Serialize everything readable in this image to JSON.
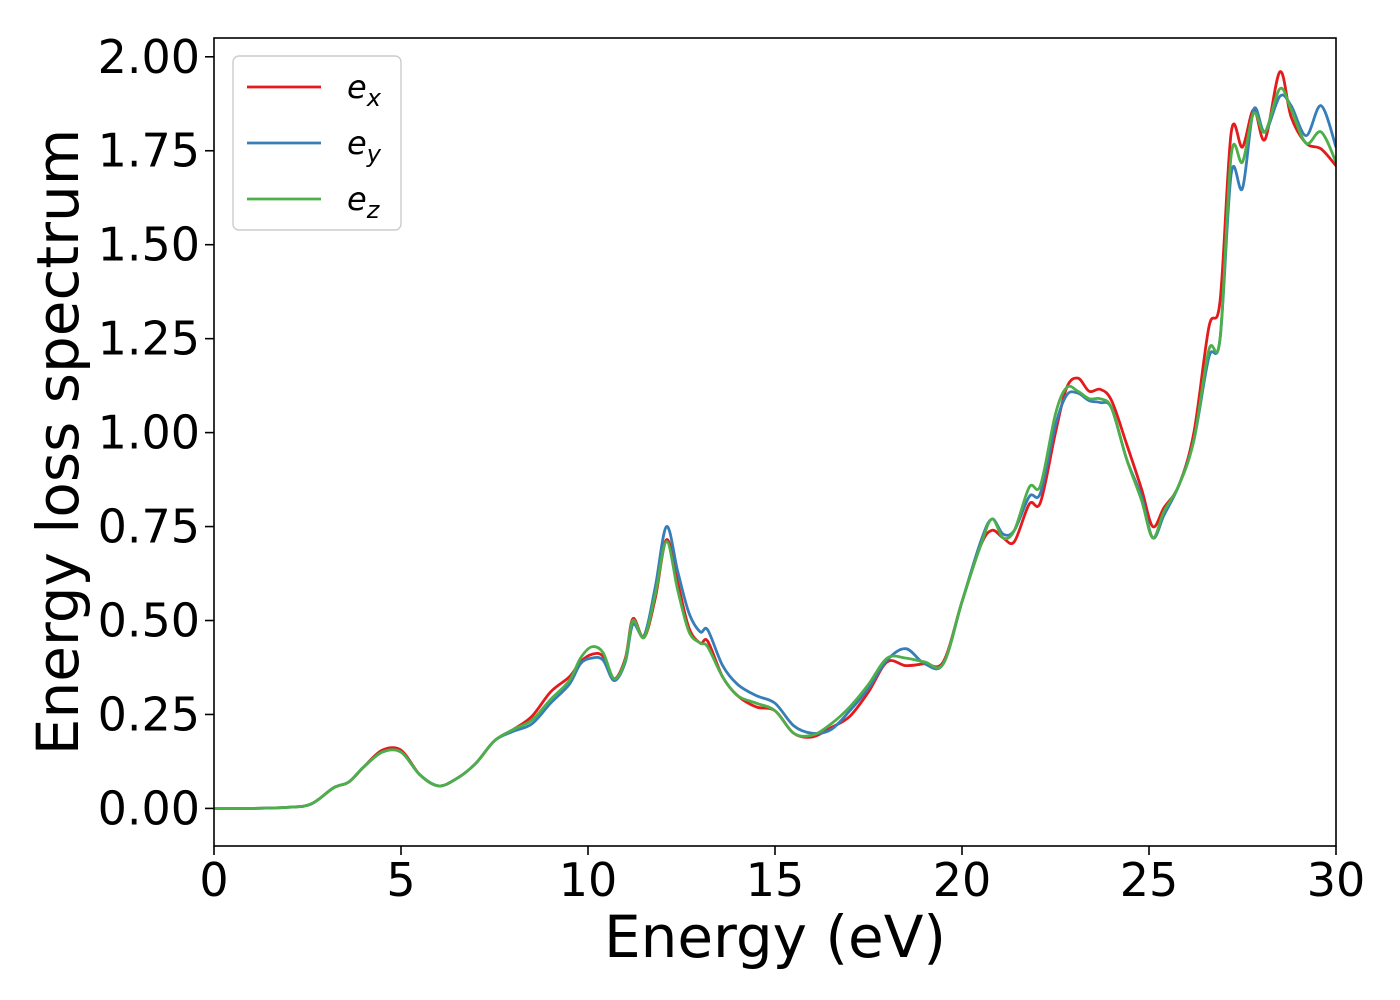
{
  "chart_data": {
    "type": "line",
    "title": "",
    "xlabel": "Energy (eV)",
    "ylabel": "Energy loss spectrum",
    "xlim": [
      0,
      30
    ],
    "ylim": [
      -0.1,
      2.05
    ],
    "xticks": [
      0,
      5,
      10,
      15,
      20,
      25,
      30
    ],
    "yticks": [
      0.0,
      0.25,
      0.5,
      0.75,
      1.0,
      1.25,
      1.5,
      1.75,
      2.0
    ],
    "xtick_labels": [
      "0",
      "5",
      "10",
      "15",
      "20",
      "25",
      "30"
    ],
    "ytick_labels": [
      "0.00",
      "0.25",
      "0.50",
      "0.75",
      "1.00",
      "1.25",
      "1.50",
      "1.75",
      "2.00"
    ],
    "grid": false,
    "legend_position": "top-left",
    "series": [
      {
        "base": "e",
        "subscript": "x",
        "color": "#e41a1c",
        "points": [
          [
            0,
            0
          ],
          [
            1,
            0
          ],
          [
            2,
            0.003
          ],
          [
            2.6,
            0.012
          ],
          [
            3.2,
            0.055
          ],
          [
            3.6,
            0.07
          ],
          [
            4,
            0.11
          ],
          [
            4.5,
            0.155
          ],
          [
            5,
            0.155
          ],
          [
            5.5,
            0.09
          ],
          [
            6,
            0.06
          ],
          [
            6.5,
            0.08
          ],
          [
            7,
            0.12
          ],
          [
            7.5,
            0.18
          ],
          [
            8,
            0.21
          ],
          [
            8.5,
            0.245
          ],
          [
            9,
            0.31
          ],
          [
            9.5,
            0.35
          ],
          [
            9.8,
            0.39
          ],
          [
            10.1,
            0.41
          ],
          [
            10.4,
            0.405
          ],
          [
            10.7,
            0.345
          ],
          [
            11,
            0.4
          ],
          [
            11.2,
            0.505
          ],
          [
            11.5,
            0.455
          ],
          [
            11.8,
            0.56
          ],
          [
            12.1,
            0.715
          ],
          [
            12.4,
            0.6
          ],
          [
            12.7,
            0.48
          ],
          [
            13,
            0.44
          ],
          [
            13.2,
            0.445
          ],
          [
            13.6,
            0.35
          ],
          [
            14,
            0.3
          ],
          [
            14.5,
            0.27
          ],
          [
            15,
            0.26
          ],
          [
            15.5,
            0.2
          ],
          [
            16,
            0.19
          ],
          [
            16.5,
            0.215
          ],
          [
            17,
            0.245
          ],
          [
            17.5,
            0.31
          ],
          [
            18,
            0.39
          ],
          [
            18.5,
            0.38
          ],
          [
            19,
            0.385
          ],
          [
            19.5,
            0.39
          ],
          [
            20,
            0.55
          ],
          [
            20.5,
            0.7
          ],
          [
            20.8,
            0.74
          ],
          [
            21.1,
            0.72
          ],
          [
            21.4,
            0.71
          ],
          [
            21.8,
            0.81
          ],
          [
            22.1,
            0.815
          ],
          [
            22.5,
            1.0
          ],
          [
            22.8,
            1.12
          ],
          [
            23.1,
            1.145
          ],
          [
            23.4,
            1.11
          ],
          [
            23.7,
            1.115
          ],
          [
            24,
            1.085
          ],
          [
            24.4,
            0.97
          ],
          [
            24.8,
            0.85
          ],
          [
            25.1,
            0.75
          ],
          [
            25.4,
            0.8
          ],
          [
            25.8,
            0.86
          ],
          [
            26.2,
            1.0
          ],
          [
            26.6,
            1.28
          ],
          [
            26.9,
            1.35
          ],
          [
            27.2,
            1.8
          ],
          [
            27.5,
            1.76
          ],
          [
            27.8,
            1.86
          ],
          [
            28.1,
            1.78
          ],
          [
            28.5,
            1.96
          ],
          [
            28.8,
            1.84
          ],
          [
            29.2,
            1.77
          ],
          [
            29.6,
            1.755
          ],
          [
            30,
            1.71
          ]
        ]
      },
      {
        "base": "e",
        "subscript": "y",
        "color": "#377eb8",
        "points": [
          [
            0,
            0
          ],
          [
            1,
            0
          ],
          [
            2,
            0.003
          ],
          [
            2.6,
            0.012
          ],
          [
            3.2,
            0.055
          ],
          [
            3.6,
            0.07
          ],
          [
            4,
            0.11
          ],
          [
            4.5,
            0.15
          ],
          [
            5,
            0.15
          ],
          [
            5.5,
            0.09
          ],
          [
            6,
            0.06
          ],
          [
            6.5,
            0.08
          ],
          [
            7,
            0.12
          ],
          [
            7.5,
            0.18
          ],
          [
            8,
            0.205
          ],
          [
            8.5,
            0.225
          ],
          [
            9,
            0.28
          ],
          [
            9.5,
            0.33
          ],
          [
            9.8,
            0.385
          ],
          [
            10.1,
            0.4
          ],
          [
            10.4,
            0.395
          ],
          [
            10.7,
            0.34
          ],
          [
            11,
            0.39
          ],
          [
            11.2,
            0.49
          ],
          [
            11.5,
            0.46
          ],
          [
            11.8,
            0.59
          ],
          [
            12.1,
            0.75
          ],
          [
            12.4,
            0.63
          ],
          [
            12.7,
            0.52
          ],
          [
            13,
            0.47
          ],
          [
            13.2,
            0.475
          ],
          [
            13.6,
            0.38
          ],
          [
            14,
            0.33
          ],
          [
            14.5,
            0.3
          ],
          [
            15,
            0.28
          ],
          [
            15.5,
            0.22
          ],
          [
            16,
            0.2
          ],
          [
            16.5,
            0.21
          ],
          [
            17,
            0.26
          ],
          [
            17.5,
            0.32
          ],
          [
            18,
            0.395
          ],
          [
            18.5,
            0.425
          ],
          [
            19,
            0.385
          ],
          [
            19.5,
            0.385
          ],
          [
            20,
            0.55
          ],
          [
            20.5,
            0.71
          ],
          [
            20.8,
            0.77
          ],
          [
            21.1,
            0.73
          ],
          [
            21.4,
            0.74
          ],
          [
            21.8,
            0.83
          ],
          [
            22.1,
            0.84
          ],
          [
            22.5,
            1.02
          ],
          [
            22.8,
            1.1
          ],
          [
            23.1,
            1.105
          ],
          [
            23.4,
            1.085
          ],
          [
            23.7,
            1.08
          ],
          [
            24,
            1.065
          ],
          [
            24.4,
            0.93
          ],
          [
            24.8,
            0.83
          ],
          [
            25.1,
            0.72
          ],
          [
            25.4,
            0.78
          ],
          [
            25.8,
            0.86
          ],
          [
            26.2,
            0.98
          ],
          [
            26.6,
            1.2
          ],
          [
            26.9,
            1.25
          ],
          [
            27.2,
            1.69
          ],
          [
            27.5,
            1.65
          ],
          [
            27.8,
            1.86
          ],
          [
            28.1,
            1.8
          ],
          [
            28.5,
            1.895
          ],
          [
            28.8,
            1.87
          ],
          [
            29.2,
            1.79
          ],
          [
            29.6,
            1.87
          ],
          [
            30,
            1.76
          ]
        ]
      },
      {
        "base": "e",
        "subscript": "z",
        "color": "#4daf4a",
        "points": [
          [
            0,
            0
          ],
          [
            1,
            0
          ],
          [
            2,
            0.003
          ],
          [
            2.6,
            0.012
          ],
          [
            3.2,
            0.055
          ],
          [
            3.6,
            0.07
          ],
          [
            4,
            0.11
          ],
          [
            4.5,
            0.15
          ],
          [
            5,
            0.15
          ],
          [
            5.5,
            0.09
          ],
          [
            6,
            0.06
          ],
          [
            6.5,
            0.08
          ],
          [
            7,
            0.12
          ],
          [
            7.5,
            0.18
          ],
          [
            8,
            0.21
          ],
          [
            8.5,
            0.235
          ],
          [
            9,
            0.29
          ],
          [
            9.5,
            0.34
          ],
          [
            9.8,
            0.4
          ],
          [
            10.1,
            0.43
          ],
          [
            10.4,
            0.415
          ],
          [
            10.7,
            0.345
          ],
          [
            11,
            0.395
          ],
          [
            11.2,
            0.5
          ],
          [
            11.5,
            0.455
          ],
          [
            11.8,
            0.57
          ],
          [
            12.1,
            0.71
          ],
          [
            12.4,
            0.58
          ],
          [
            12.7,
            0.47
          ],
          [
            13,
            0.44
          ],
          [
            13.2,
            0.43
          ],
          [
            13.6,
            0.35
          ],
          [
            14,
            0.3
          ],
          [
            14.5,
            0.28
          ],
          [
            15,
            0.26
          ],
          [
            15.5,
            0.2
          ],
          [
            16,
            0.195
          ],
          [
            16.5,
            0.225
          ],
          [
            17,
            0.27
          ],
          [
            17.5,
            0.33
          ],
          [
            18,
            0.4
          ],
          [
            18.5,
            0.4
          ],
          [
            19,
            0.39
          ],
          [
            19.5,
            0.385
          ],
          [
            20,
            0.55
          ],
          [
            20.5,
            0.7
          ],
          [
            20.8,
            0.77
          ],
          [
            21.1,
            0.72
          ],
          [
            21.4,
            0.74
          ],
          [
            21.8,
            0.855
          ],
          [
            22.1,
            0.86
          ],
          [
            22.5,
            1.05
          ],
          [
            22.8,
            1.12
          ],
          [
            23.1,
            1.11
          ],
          [
            23.4,
            1.09
          ],
          [
            23.7,
            1.09
          ],
          [
            24,
            1.065
          ],
          [
            24.4,
            0.93
          ],
          [
            24.8,
            0.82
          ],
          [
            25.1,
            0.72
          ],
          [
            25.4,
            0.79
          ],
          [
            25.8,
            0.86
          ],
          [
            26.2,
            0.98
          ],
          [
            26.6,
            1.22
          ],
          [
            26.9,
            1.25
          ],
          [
            27.2,
            1.74
          ],
          [
            27.5,
            1.72
          ],
          [
            27.8,
            1.85
          ],
          [
            28.1,
            1.8
          ],
          [
            28.5,
            1.915
          ],
          [
            28.8,
            1.86
          ],
          [
            29.2,
            1.77
          ],
          [
            29.6,
            1.8
          ],
          [
            30,
            1.72
          ]
        ]
      }
    ]
  }
}
